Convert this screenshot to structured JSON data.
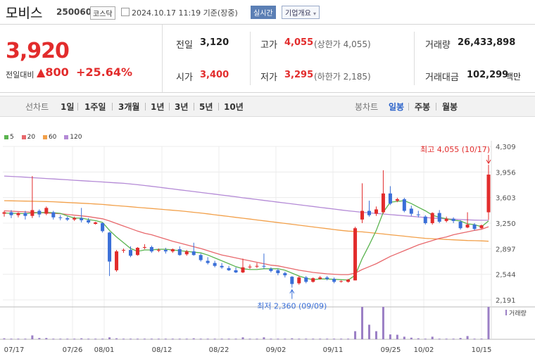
{
  "header": {
    "name": "모비스",
    "code": "250060",
    "market": "코스닥",
    "datetime": "2024.10.17 11:19 기준(장중)",
    "realtime_label": "실시간",
    "info_label": "기업개요",
    "info_caret": "▾"
  },
  "price": {
    "current": "3,920",
    "change_label": "전일대비",
    "change_arrow": "▲",
    "change_value": "800",
    "change_pct": "+25.64%"
  },
  "stats": {
    "prev_label": "전일",
    "prev_value": "3,120",
    "high_label": "고가",
    "high_value": "4,055",
    "upper_limit": "(상한가 4,055)",
    "volume_label": "거래량",
    "volume_value": "26,433,898",
    "open_label": "시가",
    "open_value": "3,400",
    "low_label": "저가",
    "low_value": "3,295",
    "lower_limit": "(하한가 2,185)",
    "amount_label": "거래대금",
    "amount_value": "102,299",
    "amount_unit": "백만"
  },
  "toolbar": {
    "line_label": "선차트",
    "periods": [
      "1일",
      "1주일",
      "3개월",
      "1년",
      "3년",
      "5년",
      "10년"
    ],
    "candle_label": "봉차트",
    "candle_periods": [
      "일봉",
      "주봉",
      "월봉"
    ],
    "candle_active": "일봉"
  },
  "colors": {
    "up": "#e22c2c",
    "down": "#3a6fd8",
    "ma5": "#5bb450",
    "ma20": "#e8686c",
    "ma60": "#f2a04a",
    "ma120": "#b48ad6",
    "volume": "#9b7fc5"
  },
  "chart_data": {
    "type": "candlestick",
    "y_ticks": [
      "4,309",
      "3,956",
      "3,603",
      "3,250",
      "2,897",
      "2,544",
      "2,191"
    ],
    "ylim": [
      2191,
      4309
    ],
    "x_ticks": [
      "07/17",
      "07/26",
      "08/01",
      "08/12",
      "08/22",
      "09/02",
      "09/11",
      "09/25",
      "10/02",
      "10/15"
    ],
    "legend": [
      "5",
      "20",
      "60",
      "120"
    ],
    "volume_label": "거래량",
    "annotations": {
      "high": "최고 4,055 (10/17)",
      "low": "최저 2,360 (09/09)"
    },
    "candles": [
      {
        "o": 3380,
        "h": 3420,
        "c": 3400,
        "l": 3340
      },
      {
        "o": 3400,
        "h": 3430,
        "c": 3360,
        "l": 3320
      },
      {
        "o": 3360,
        "h": 3400,
        "c": 3390,
        "l": 3330
      },
      {
        "o": 3390,
        "h": 3420,
        "c": 3350,
        "l": 3300
      },
      {
        "o": 3350,
        "h": 3900,
        "c": 3430,
        "l": 3320
      },
      {
        "o": 3420,
        "h": 3440,
        "c": 3370,
        "l": 3330
      },
      {
        "o": 3380,
        "h": 3480,
        "c": 3460,
        "l": 3360
      },
      {
        "o": 3400,
        "h": 3420,
        "c": 3330,
        "l": 3300
      },
      {
        "o": 3330,
        "h": 3360,
        "c": 3320,
        "l": 3290
      },
      {
        "o": 3320,
        "h": 3340,
        "c": 3300,
        "l": 3280
      },
      {
        "o": 3300,
        "h": 3340,
        "c": 3320,
        "l": 3280
      },
      {
        "o": 3320,
        "h": 3460,
        "c": 3290,
        "l": 3260
      },
      {
        "o": 3290,
        "h": 3320,
        "c": 3260,
        "l": 3240
      },
      {
        "o": 3240,
        "h": 3270,
        "c": 3260,
        "l": 3230
      },
      {
        "o": 3250,
        "h": 3260,
        "c": 3140,
        "l": 3120
      },
      {
        "o": 3120,
        "h": 3130,
        "c": 2720,
        "l": 2520
      },
      {
        "o": 2600,
        "h": 2880,
        "c": 2860,
        "l": 2580
      },
      {
        "o": 2870,
        "h": 2900,
        "c": 2880,
        "l": 2840
      },
      {
        "o": 2880,
        "h": 2930,
        "c": 2800,
        "l": 2780
      },
      {
        "o": 2810,
        "h": 2920,
        "c": 2910,
        "l": 2800
      },
      {
        "o": 2910,
        "h": 2960,
        "c": 2920,
        "l": 2890
      },
      {
        "o": 2920,
        "h": 2940,
        "c": 2860,
        "l": 2840
      },
      {
        "o": 2870,
        "h": 2900,
        "c": 2880,
        "l": 2850
      },
      {
        "o": 2880,
        "h": 2910,
        "c": 2860,
        "l": 2830
      },
      {
        "o": 2860,
        "h": 2900,
        "c": 2890,
        "l": 2840
      },
      {
        "o": 2890,
        "h": 2930,
        "c": 2810,
        "l": 2800
      },
      {
        "o": 2820,
        "h": 2880,
        "c": 2860,
        "l": 2800
      },
      {
        "o": 2860,
        "h": 2980,
        "c": 2810,
        "l": 2800
      },
      {
        "o": 2810,
        "h": 2830,
        "c": 2740,
        "l": 2720
      },
      {
        "o": 2730,
        "h": 2780,
        "c": 2700,
        "l": 2680
      },
      {
        "o": 2700,
        "h": 2730,
        "c": 2660,
        "l": 2640
      },
      {
        "o": 2660,
        "h": 2700,
        "c": 2640,
        "l": 2620
      },
      {
        "o": 2630,
        "h": 2660,
        "c": 2600,
        "l": 2590
      },
      {
        "o": 2600,
        "h": 2640,
        "c": 2570,
        "l": 2560
      },
      {
        "o": 2570,
        "h": 2760,
        "c": 2640,
        "l": 2560
      },
      {
        "o": 2640,
        "h": 2680,
        "c": 2650,
        "l": 2620
      },
      {
        "o": 2650,
        "h": 2700,
        "c": 2660,
        "l": 2630
      },
      {
        "o": 2660,
        "h": 2830,
        "c": 2650,
        "l": 2620
      },
      {
        "o": 2620,
        "h": 2640,
        "c": 2590,
        "l": 2570
      },
      {
        "o": 2600,
        "h": 2620,
        "c": 2560,
        "l": 2530
      },
      {
        "o": 2560,
        "h": 2580,
        "c": 2530,
        "l": 2500
      },
      {
        "o": 2510,
        "h": 2520,
        "c": 2410,
        "l": 2360
      },
      {
        "o": 2420,
        "h": 2520,
        "c": 2500,
        "l": 2400
      },
      {
        "o": 2500,
        "h": 2520,
        "c": 2440,
        "l": 2420
      },
      {
        "o": 2440,
        "h": 2500,
        "c": 2490,
        "l": 2430
      },
      {
        "o": 2480,
        "h": 2520,
        "c": 2500,
        "l": 2470
      },
      {
        "o": 2500,
        "h": 2520,
        "c": 2480,
        "l": 2460
      },
      {
        "o": 2480,
        "h": 2500,
        "c": 2440,
        "l": 2420
      },
      {
        "o": 2450,
        "h": 2460,
        "c": 2450,
        "l": 2430
      },
      {
        "o": 2440,
        "h": 2480,
        "c": 2470,
        "l": 2430
      },
      {
        "o": 2460,
        "h": 3200,
        "c": 3180,
        "l": 2460
      },
      {
        "o": 3300,
        "h": 3800,
        "c": 3420,
        "l": 3250
      },
      {
        "o": 3420,
        "h": 3560,
        "c": 3360,
        "l": 3340
      },
      {
        "o": 3380,
        "h": 3480,
        "c": 3440,
        "l": 3350
      },
      {
        "o": 3400,
        "h": 3980,
        "c": 3660,
        "l": 3380
      },
      {
        "o": 3660,
        "h": 3760,
        "c": 3520,
        "l": 3500
      },
      {
        "o": 3560,
        "h": 3600,
        "c": 3580,
        "l": 3540
      },
      {
        "o": 3580,
        "h": 3600,
        "c": 3420,
        "l": 3400
      },
      {
        "o": 3450,
        "h": 3490,
        "c": 3380,
        "l": 3350
      },
      {
        "o": 3370,
        "h": 3420,
        "c": 3360,
        "l": 3330
      },
      {
        "o": 3340,
        "h": 3360,
        "c": 3250,
        "l": 3230
      },
      {
        "o": 3250,
        "h": 3400,
        "c": 3390,
        "l": 3230
      },
      {
        "o": 3390,
        "h": 3430,
        "c": 3270,
        "l": 3250
      },
      {
        "o": 3280,
        "h": 3340,
        "c": 3310,
        "l": 3260
      },
      {
        "o": 3310,
        "h": 3330,
        "c": 3280,
        "l": 3250
      },
      {
        "o": 3270,
        "h": 3290,
        "c": 3180,
        "l": 3160
      },
      {
        "o": 3190,
        "h": 3400,
        "c": 3230,
        "l": 3180
      },
      {
        "o": 3230,
        "h": 3250,
        "c": 3170,
        "l": 3150
      },
      {
        "o": 3180,
        "h": 3230,
        "c": 3220,
        "l": 3170
      },
      {
        "o": 3400,
        "h": 4055,
        "c": 3920,
        "l": 3295
      }
    ],
    "volumes": [
      3,
      2,
      2,
      2,
      12,
      4,
      4,
      2,
      2,
      2,
      2,
      3,
      2,
      2,
      2,
      6,
      3,
      2,
      2,
      2,
      2,
      2,
      2,
      2,
      2,
      2,
      2,
      3,
      2,
      2,
      2,
      2,
      2,
      2,
      6,
      2,
      2,
      6,
      2,
      2,
      2,
      3,
      2,
      2,
      2,
      2,
      2,
      2,
      2,
      2,
      25,
      100,
      45,
      25,
      100,
      15,
      14,
      8,
      5,
      3,
      2,
      8,
      2,
      2,
      2,
      4,
      10,
      2,
      2,
      100
    ],
    "ma5": [
      3390,
      3385,
      3385,
      3380,
      3390,
      3395,
      3400,
      3395,
      3385,
      3350,
      3320,
      3320,
      3300,
      3285,
      3260,
      3150,
      3060,
      2980,
      2900,
      2860,
      2880,
      2880,
      2890,
      2890,
      2880,
      2870,
      2860,
      2850,
      2840,
      2810,
      2770,
      2730,
      2690,
      2650,
      2620,
      2610,
      2610,
      2620,
      2620,
      2620,
      2600,
      2560,
      2520,
      2490,
      2470,
      2480,
      2480,
      2475,
      2470,
      2465,
      2530,
      2760,
      2950,
      3150,
      3400,
      3540,
      3550,
      3560,
      3520,
      3470,
      3420,
      3360,
      3330,
      3310,
      3290,
      3280,
      3240,
      3230,
      3200,
      3280
    ],
    "ma20": [
      3420,
      3415,
      3410,
      3405,
      3400,
      3395,
      3390,
      3385,
      3380,
      3370,
      3360,
      3350,
      3340,
      3325,
      3310,
      3280,
      3245,
      3210,
      3175,
      3140,
      3110,
      3090,
      3060,
      3030,
      3000,
      2975,
      2950,
      2925,
      2900,
      2870,
      2840,
      2810,
      2790,
      2770,
      2750,
      2730,
      2710,
      2690,
      2670,
      2660,
      2640,
      2620,
      2600,
      2585,
      2570,
      2560,
      2550,
      2545,
      2540,
      2540,
      2560,
      2610,
      2650,
      2690,
      2740,
      2790,
      2830,
      2870,
      2910,
      2950,
      2980,
      3010,
      3040,
      3060,
      3090,
      3110,
      3130,
      3150,
      3165,
      3200
    ],
    "ma60": [
      3560,
      3558,
      3556,
      3554,
      3552,
      3550,
      3548,
      3545,
      3540,
      3535,
      3530,
      3525,
      3520,
      3514,
      3508,
      3500,
      3492,
      3484,
      3476,
      3468,
      3460,
      3452,
      3444,
      3436,
      3428,
      3420,
      3410,
      3400,
      3390,
      3378,
      3366,
      3354,
      3342,
      3330,
      3318,
      3306,
      3294,
      3282,
      3270,
      3258,
      3246,
      3234,
      3222,
      3210,
      3198,
      3186,
      3174,
      3162,
      3150,
      3140,
      3135,
      3130,
      3120,
      3110,
      3100,
      3090,
      3080,
      3070,
      3060,
      3050,
      3040,
      3035,
      3030,
      3025,
      3020,
      3015,
      3010,
      3008,
      3005,
      3000
    ],
    "ma120": [
      3900,
      3895,
      3890,
      3884,
      3878,
      3872,
      3866,
      3860,
      3854,
      3848,
      3842,
      3836,
      3830,
      3824,
      3818,
      3812,
      3806,
      3800,
      3790,
      3780,
      3770,
      3758,
      3746,
      3734,
      3722,
      3710,
      3698,
      3686,
      3674,
      3662,
      3650,
      3638,
      3626,
      3614,
      3600,
      3588,
      3576,
      3564,
      3552,
      3540,
      3528,
      3516,
      3504,
      3492,
      3480,
      3468,
      3456,
      3444,
      3432,
      3420,
      3410,
      3400,
      3392,
      3384,
      3376,
      3368,
      3360,
      3352,
      3344,
      3336,
      3328,
      3320,
      3315,
      3310,
      3305,
      3300,
      3296,
      3292,
      3290,
      3290
    ]
  }
}
